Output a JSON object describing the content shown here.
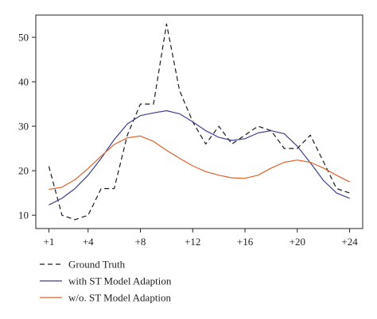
{
  "chart_data": {
    "type": "line",
    "x": [
      1,
      2,
      3,
      4,
      5,
      6,
      7,
      8,
      9,
      10,
      11,
      12,
      13,
      14,
      15,
      16,
      17,
      18,
      19,
      20,
      21,
      22,
      23,
      24
    ],
    "xticks": [
      1,
      4,
      8,
      12,
      16,
      20,
      24
    ],
    "xtick_labels": [
      "+1",
      "+4",
      "+8",
      "+12",
      "+16",
      "+20",
      "+24"
    ],
    "yticks": [
      10,
      20,
      30,
      40,
      50
    ],
    "ytick_labels": [
      "10",
      "20",
      "30",
      "40",
      "50"
    ],
    "xlim": [
      0,
      25
    ],
    "ylim": [
      7,
      55
    ],
    "grid": false,
    "legend_position": "bottom",
    "series": [
      {
        "name": "Ground Truth",
        "style": "dashed",
        "color": "#1a1a1a",
        "values": [
          21,
          10,
          9,
          10,
          16,
          16,
          28,
          35,
          35,
          53,
          38,
          31,
          26,
          30,
          26,
          28,
          30,
          29,
          25,
          25,
          28,
          22,
          16,
          15
        ]
      },
      {
        "name": "with ST Model Adaption",
        "style": "solid",
        "color": "#3b3f8f",
        "values": [
          12.3,
          13.8,
          16.0,
          19.0,
          22.8,
          27.0,
          30.5,
          32.4,
          33.0,
          33.5,
          32.8,
          31.0,
          29.0,
          27.5,
          26.8,
          27.2,
          28.5,
          29.0,
          28.3,
          25.5,
          21.8,
          17.8,
          15.0,
          13.8
        ]
      },
      {
        "name": "w/o. ST Model Adaption",
        "style": "solid",
        "color": "#e0612a",
        "values": [
          15.8,
          16.3,
          18.0,
          20.5,
          23.3,
          25.9,
          27.4,
          27.8,
          26.6,
          24.6,
          22.8,
          21.1,
          19.8,
          19.0,
          18.4,
          18.3,
          19.0,
          20.6,
          21.9,
          22.4,
          21.9,
          20.6,
          19.0,
          17.5
        ]
      }
    ]
  }
}
